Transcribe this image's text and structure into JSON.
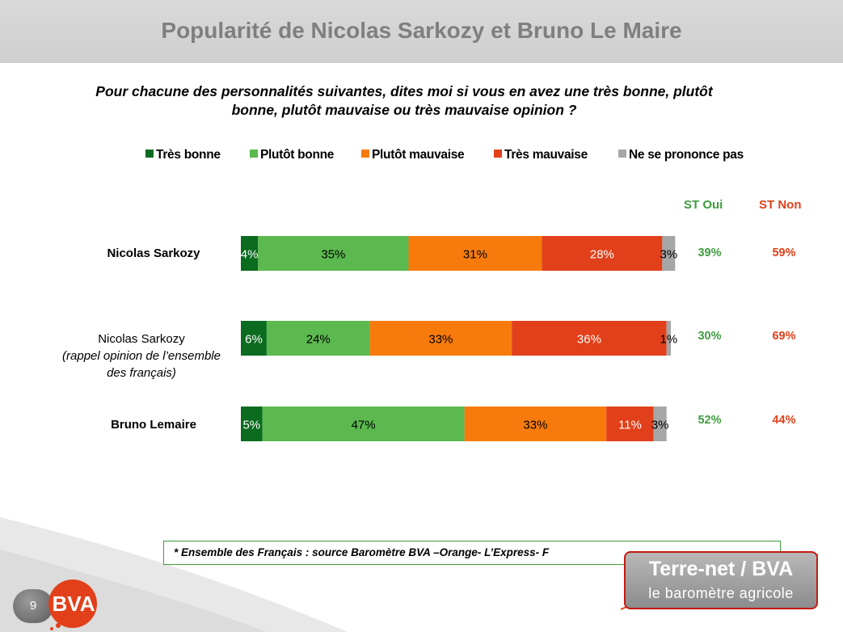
{
  "header": {
    "title": "Popularité de Nicolas Sarkozy et Bruno Le Maire"
  },
  "question": "Pour chacune des personnalités suivantes, dites moi si vous en avez une très bonne, plutôt bonne, plutôt mauvaise ou très mauvaise opinion ?",
  "columns": {
    "st_oui": "ST Oui",
    "st_non": "ST Non"
  },
  "rows": [
    {
      "label": "Nicolas Sarkozy",
      "sub": "",
      "st_oui": "39%",
      "st_non": "59%"
    },
    {
      "label": "Nicolas Sarkozy",
      "sub": "(rappel opinion de l’ensemble des français)",
      "st_oui": "30%",
      "st_non": "69%"
    },
    {
      "label": "Bruno Lemaire",
      "sub": "",
      "st_oui": "52%",
      "st_non": "44%"
    }
  ],
  "colors": {
    "tres_bonne": "#0b6b1f",
    "plutot_bonne": "#5bb94f",
    "plutot_mauvaise": "#f77b0c",
    "tres_mauvaise": "#e2401a",
    "nspp": "#a6a6a6",
    "st_oui": "#3f9b3f",
    "st_non": "#e2401a"
  },
  "chart_data": {
    "type": "bar",
    "orientation": "horizontal",
    "stacked": true,
    "categories": [
      "Nicolas Sarkozy",
      "Nicolas Sarkozy (rappel opinion de l’ensemble des français)",
      "Bruno Lemaire"
    ],
    "series": [
      {
        "name": "Très bonne",
        "values": [
          4,
          6,
          5
        ],
        "labels": [
          "4%",
          "6%",
          "5%"
        ]
      },
      {
        "name": "Plutôt bonne",
        "values": [
          35,
          24,
          47
        ],
        "labels": [
          "35%",
          "24%",
          "47%"
        ]
      },
      {
        "name": "Plutôt mauvaise",
        "values": [
          31,
          33,
          33
        ],
        "labels": [
          "31%",
          "33%",
          "33%"
        ]
      },
      {
        "name": "Très mauvaise",
        "values": [
          28,
          36,
          11
        ],
        "labels": [
          "28%",
          "36%",
          "11%"
        ]
      },
      {
        "name": "Ne se prononce pas",
        "values": [
          3,
          1,
          3
        ],
        "labels": [
          "3%",
          "1%",
          "3%"
        ]
      }
    ],
    "legend_position": "top",
    "grid": false
  },
  "footnote": "* Ensemble des Français : source Baromètre BVA –Orange- L’Express- F",
  "page_number": "9",
  "logos": {
    "bva": "BVA",
    "terre_net_title": "Terre-net / BVA",
    "terre_net_subtitle": "le baromètre agricole"
  }
}
